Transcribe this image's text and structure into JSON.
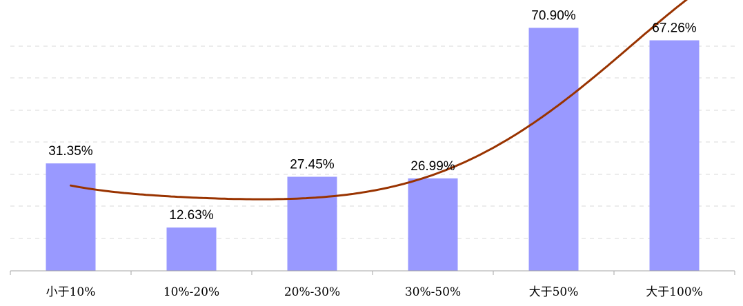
{
  "chart_data": {
    "type": "bar",
    "categories": [
      "小于10%",
      "10%-20%",
      "20%-30%",
      "30%-50%",
      "大于50%",
      "大于100%"
    ],
    "values": [
      31.35,
      12.63,
      27.45,
      26.99,
      70.9,
      67.26
    ],
    "data_labels": [
      "31.35%",
      "12.63%",
      "27.45%",
      "26.99%",
      "70.90%",
      "67.26%"
    ],
    "ylim": [
      0,
      75
    ],
    "grid": true,
    "trendline": {
      "type": "polynomial",
      "points": [
        24.9,
        21.4,
        21.3,
        28.0,
        47.3,
        76.3
      ]
    },
    "colors": {
      "bar": "#9999ff",
      "trend": "#993300",
      "grid": "#d9d9d9",
      "axis": "#a6a6a6"
    }
  }
}
